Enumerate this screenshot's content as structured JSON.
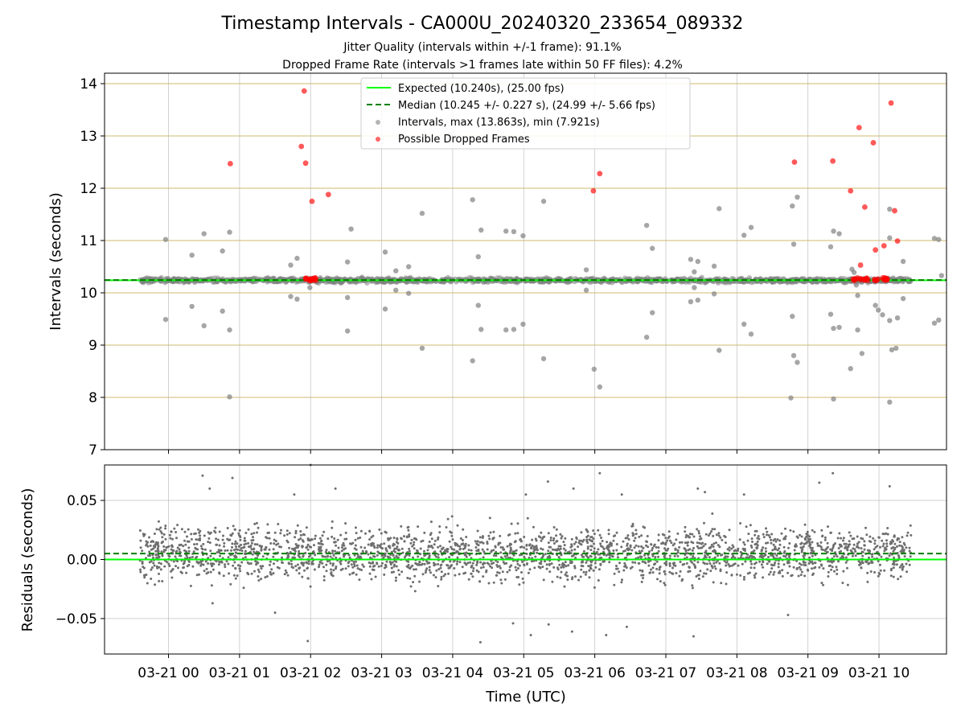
{
  "figure": {
    "title": "Timestamp Intervals - CA000U_20240320_233654_089332",
    "subtitle_1": "Jitter Quality (intervals within +/-1 frame): 91.1%",
    "subtitle_2": "Dropped Frame Rate (intervals >1 frames late within 50 FF files): 4.2%"
  },
  "chart_data": [
    {
      "type": "scatter",
      "name": "intervals",
      "ylabel": "Intervals (seconds)",
      "xlabel": "",
      "ylim": [
        7,
        14.2
      ],
      "xlim_hours": [
        -0.9,
        10.95
      ],
      "yticks": [
        7,
        8,
        9,
        10,
        11,
        12,
        13,
        14
      ],
      "grid": "horizontal-lines-tan-and-vertical-gray",
      "legend": {
        "placement": "top-center",
        "entries": [
          {
            "label": "Expected (10.240s), (25.00 fps)",
            "style": "solid-line",
            "color": "#00ff00"
          },
          {
            "label": "Median (10.245 +/- 0.227 s), (24.99 +/- 5.66 fps)",
            "style": "dashed-line",
            "color": "#008000"
          },
          {
            "label": "Intervals, max (13.863s), min (7.921s)",
            "style": "dot",
            "color": "#808080"
          },
          {
            "label": "Possible Dropped Frames",
            "style": "dot",
            "color": "#ff0000"
          }
        ]
      },
      "expected_line": 10.24,
      "median_line": 10.245,
      "band": {
        "x_range_hours": [
          -0.4,
          10.45
        ],
        "y_center": 10.24,
        "y_spread": 0.04
      },
      "outliers": [
        [
          -0.04,
          11.02
        ],
        [
          -0.04,
          9.49
        ],
        [
          0.33,
          10.72
        ],
        [
          0.33,
          9.74
        ],
        [
          0.5,
          11.13
        ],
        [
          0.5,
          9.37
        ],
        [
          0.76,
          10.8
        ],
        [
          0.76,
          9.65
        ],
        [
          0.86,
          11.16
        ],
        [
          0.86,
          9.29
        ],
        [
          0.86,
          8.01
        ],
        [
          1.72,
          10.53
        ],
        [
          1.72,
          9.93
        ],
        [
          1.81,
          10.66
        ],
        [
          1.81,
          9.88
        ],
        [
          1.99,
          10.1
        ],
        [
          2.52,
          10.59
        ],
        [
          2.52,
          9.91
        ],
        [
          2.52,
          9.27
        ],
        [
          2.57,
          11.22
        ],
        [
          3.05,
          10.78
        ],
        [
          3.05,
          9.69
        ],
        [
          3.2,
          10.42
        ],
        [
          3.2,
          10.05
        ],
        [
          3.38,
          10.5
        ],
        [
          3.38,
          9.99
        ],
        [
          3.57,
          11.52
        ],
        [
          3.57,
          8.94
        ],
        [
          4.28,
          11.78
        ],
        [
          4.28,
          8.7
        ],
        [
          4.36,
          10.69
        ],
        [
          4.36,
          9.76
        ],
        [
          4.4,
          11.2
        ],
        [
          4.4,
          9.3
        ],
        [
          4.75,
          11.18
        ],
        [
          4.75,
          9.29
        ],
        [
          4.86,
          11.17
        ],
        [
          4.86,
          9.3
        ],
        [
          4.99,
          11.09
        ],
        [
          4.99,
          9.4
        ],
        [
          5.28,
          11.75
        ],
        [
          5.28,
          8.74
        ],
        [
          5.88,
          10.44
        ],
        [
          5.88,
          10.05
        ],
        [
          5.99,
          8.54
        ],
        [
          6.07,
          8.2
        ],
        [
          6.73,
          11.29
        ],
        [
          6.73,
          9.15
        ],
        [
          6.81,
          10.85
        ],
        [
          6.81,
          9.62
        ],
        [
          7.35,
          10.64
        ],
        [
          7.35,
          9.83
        ],
        [
          7.45,
          10.6
        ],
        [
          7.45,
          9.86
        ],
        [
          7.4,
          10.1
        ],
        [
          7.4,
          10.4
        ],
        [
          7.68,
          10.51
        ],
        [
          7.68,
          9.98
        ],
        [
          7.75,
          11.61
        ],
        [
          7.75,
          8.9
        ],
        [
          8.1,
          11.1
        ],
        [
          8.1,
          9.4
        ],
        [
          8.2,
          11.25
        ],
        [
          8.2,
          9.21
        ],
        [
          8.78,
          11.66
        ],
        [
          8.78,
          9.55
        ],
        [
          8.8,
          10.93
        ],
        [
          8.8,
          8.8
        ],
        [
          8.85,
          11.83
        ],
        [
          8.85,
          8.67
        ],
        [
          8.76,
          7.99
        ],
        [
          9.32,
          10.88
        ],
        [
          9.32,
          9.59
        ],
        [
          9.36,
          11.18
        ],
        [
          9.36,
          9.32
        ],
        [
          9.36,
          7.97
        ],
        [
          9.44,
          11.13
        ],
        [
          9.44,
          9.34
        ],
        [
          9.6,
          8.55
        ],
        [
          9.62,
          10.45
        ],
        [
          9.65,
          10.39
        ],
        [
          9.68,
          10.15
        ],
        [
          9.7,
          9.95
        ],
        [
          9.7,
          9.29
        ],
        [
          9.76,
          8.84
        ],
        [
          9.95,
          9.76
        ],
        [
          9.99,
          9.67
        ],
        [
          10.05,
          9.58
        ],
        [
          10.15,
          11.6
        ],
        [
          10.15,
          11.05
        ],
        [
          10.15,
          9.47
        ],
        [
          10.18,
          8.91
        ],
        [
          10.15,
          7.91
        ],
        [
          10.26,
          9.52
        ],
        [
          10.24,
          8.94
        ],
        [
          10.34,
          10.6
        ],
        [
          10.34,
          9.89
        ],
        [
          10.78,
          11.04
        ],
        [
          10.78,
          9.42
        ],
        [
          10.84,
          11.02
        ],
        [
          10.84,
          9.48
        ],
        [
          10.88,
          10.33
        ]
      ],
      "dropped": [
        [
          0.87,
          12.47
        ],
        [
          1.87,
          12.8
        ],
        [
          1.91,
          13.86
        ],
        [
          1.93,
          12.48
        ],
        [
          2.02,
          11.75
        ],
        [
          2.25,
          11.88
        ],
        [
          5.98,
          11.95
        ],
        [
          6.07,
          12.28
        ],
        [
          8.81,
          12.5
        ],
        [
          9.35,
          12.52
        ],
        [
          9.6,
          11.95
        ],
        [
          9.72,
          13.16
        ],
        [
          9.8,
          11.64
        ],
        [
          9.92,
          12.87
        ],
        [
          9.95,
          10.82
        ],
        [
          10.07,
          10.9
        ],
        [
          10.17,
          13.63
        ],
        [
          10.22,
          11.57
        ],
        [
          10.26,
          10.99
        ],
        [
          9.74,
          10.53
        ]
      ],
      "dropped_clusters": [
        {
          "x_range_hours": [
            1.93,
            2.08
          ],
          "y": 10.26
        },
        {
          "x_range_hours": [
            9.62,
            9.85
          ],
          "y": 10.26
        },
        {
          "x_range_hours": [
            9.88,
            10.12
          ],
          "y": 10.26
        }
      ]
    },
    {
      "type": "scatter",
      "name": "residuals",
      "ylabel": "Residuals (seconds)",
      "xlabel": "Time (UTC)",
      "ylim": [
        -0.08,
        0.08
      ],
      "yticks": [
        0.05,
        0.0,
        -0.05
      ],
      "ytick_labels": [
        "0.05",
        "0.00",
        "−0.05"
      ],
      "grid": "both-gray",
      "zero_line": 0.0,
      "median_line": 0.005,
      "band": {
        "x_range_hours": [
          -0.4,
          10.45
        ],
        "y_center": 0.005,
        "y_spread": 0.022
      },
      "outliers": [
        [
          0.48,
          0.071
        ],
        [
          0.58,
          0.06
        ],
        [
          0.9,
          0.069
        ],
        [
          1.77,
          0.055
        ],
        [
          1.96,
          -0.069
        ],
        [
          2.0,
          0.08
        ],
        [
          2.35,
          0.06
        ],
        [
          4.39,
          -0.07
        ],
        [
          5.03,
          0.055
        ],
        [
          5.34,
          0.066
        ],
        [
          5.7,
          0.06
        ],
        [
          6.07,
          0.073
        ],
        [
          6.38,
          0.055
        ],
        [
          7.45,
          0.06
        ],
        [
          7.55,
          0.057
        ],
        [
          8.1,
          0.055
        ],
        [
          9.35,
          0.073
        ],
        [
          9.16,
          0.065
        ],
        [
          4.85,
          -0.054
        ],
        [
          5.1,
          -0.064
        ],
        [
          5.35,
          -0.055
        ],
        [
          5.68,
          -0.061
        ],
        [
          6.16,
          -0.064
        ],
        [
          6.45,
          -0.057
        ],
        [
          7.39,
          -0.065
        ],
        [
          8.72,
          -0.047
        ],
        [
          1.5,
          -0.045
        ],
        [
          0.62,
          -0.037
        ],
        [
          10.15,
          0.062
        ]
      ]
    }
  ],
  "x_axis": {
    "tick_hours": [
      0,
      1,
      2,
      3,
      4,
      5,
      6,
      7,
      8,
      9,
      10
    ],
    "tick_labels": [
      "03-21 00",
      "03-21 01",
      "03-21 02",
      "03-21 03",
      "03-21 04",
      "03-21 05",
      "03-21 06",
      "03-21 07",
      "03-21 08",
      "03-21 09",
      "03-21 10"
    ]
  },
  "colors": {
    "expected": "#00ff00",
    "median": "#008000",
    "interval_dot": "#808080",
    "dropped_dot": "#ff0000",
    "residual_dot": "#6e6e6e",
    "hgrid_top": "#d9c68a",
    "grid": "#b0b0b0"
  }
}
